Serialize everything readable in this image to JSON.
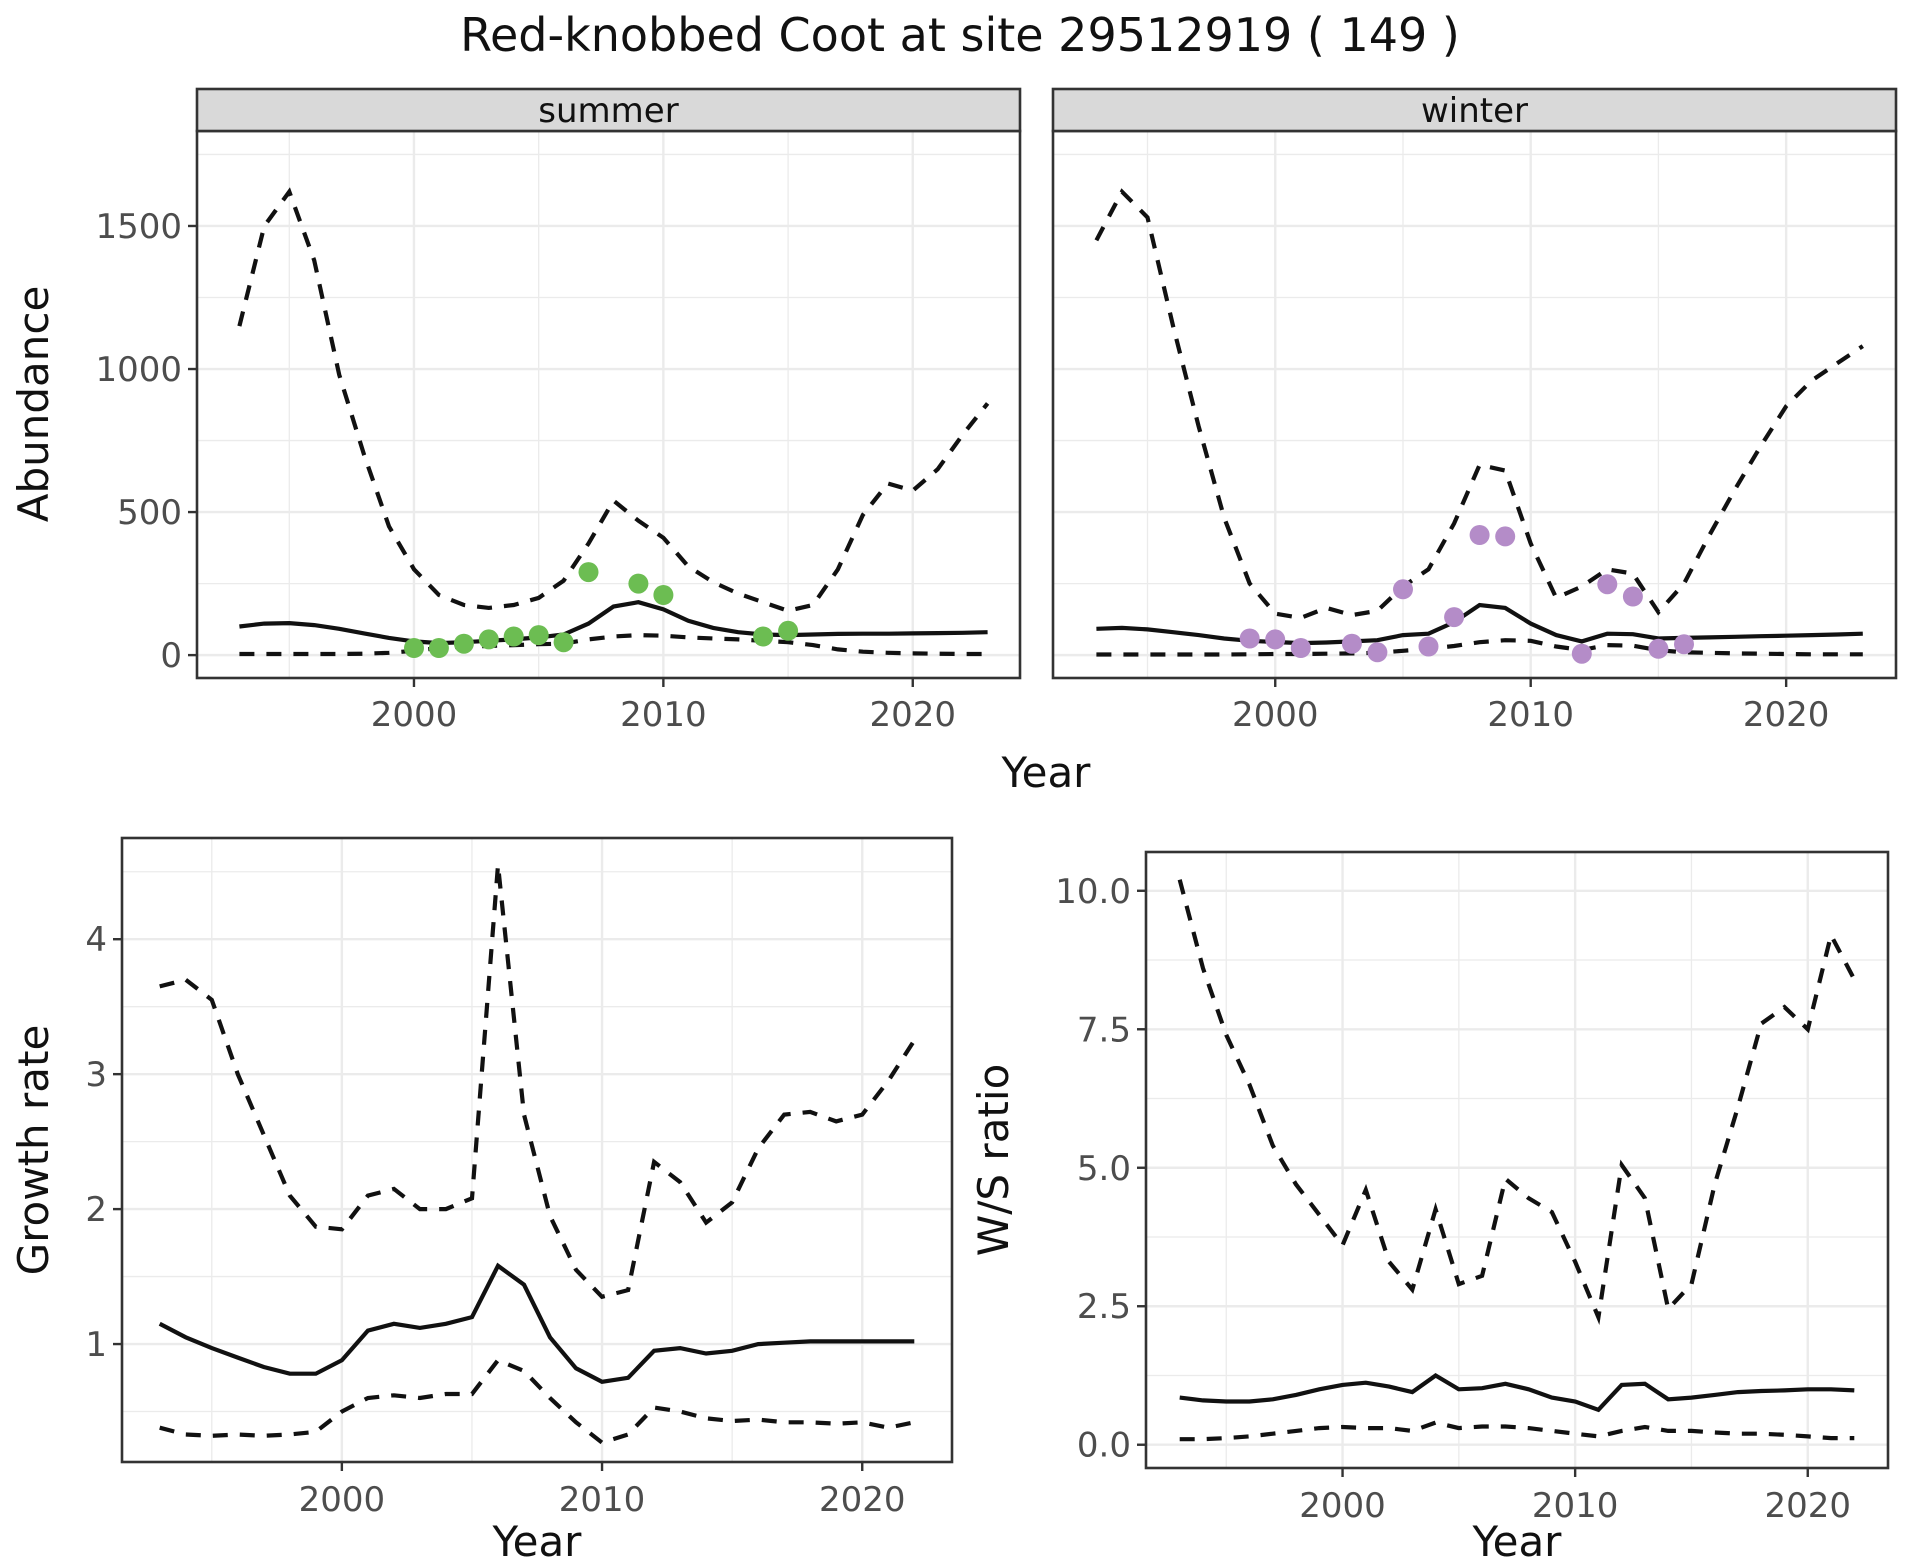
{
  "title": "Red-knobbed Coot at site 29512919 ( 149 )",
  "colors": {
    "summer_points": "#6cbd52",
    "winter_points": "#b48cc8",
    "line": "#111111",
    "gridline": "#ebebeb",
    "panel_border": "#333333",
    "strip_bg": "#d9d9d9",
    "strip_text": "#111111",
    "tick_label": "#4d4d4d",
    "axis_title": "#111111",
    "panel_bg": "#ffffff"
  },
  "chart_data": [
    {
      "id": "abundance-summer",
      "type": "line",
      "facet": "summer",
      "xlabel": "Year",
      "ylabel": "Abundance",
      "xlim": [
        1991.3,
        2024.3
      ],
      "ylim": [
        -80,
        1832
      ],
      "x_ticks": [
        2000,
        2010,
        2020
      ],
      "x_tick_labels": [
        "2000",
        "2010",
        "2020"
      ],
      "x_minor": [
        1995,
        2005,
        2015
      ],
      "y_ticks": [
        0,
        500,
        1000,
        1500
      ],
      "y_tick_labels": [
        "0",
        "500",
        "1000",
        "1500"
      ],
      "y_minor": [
        250,
        750,
        1250,
        1750
      ],
      "x": [
        1993,
        1994,
        1995,
        1996,
        1997,
        1998,
        1999,
        2000,
        2001,
        2002,
        2003,
        2004,
        2005,
        2006,
        2007,
        2008,
        2009,
        2010,
        2011,
        2012,
        2013,
        2014,
        2015,
        2016,
        2017,
        2018,
        2019,
        2020,
        2021,
        2022,
        2023
      ],
      "series": [
        {
          "name": "upper_ci",
          "style": "dashed",
          "values": [
            1150,
            1500,
            1620,
            1380,
            980,
            700,
            450,
            300,
            210,
            175,
            165,
            175,
            200,
            260,
            390,
            540,
            470,
            410,
            310,
            255,
            215,
            185,
            155,
            175,
            300,
            490,
            600,
            575,
            650,
            770,
            880
          ]
        },
        {
          "name": "mean",
          "style": "solid",
          "values": [
            100,
            110,
            112,
            105,
            92,
            76,
            60,
            48,
            42,
            45,
            50,
            55,
            62,
            72,
            110,
            170,
            185,
            160,
            120,
            95,
            80,
            72,
            70,
            72,
            74,
            75,
            75,
            76,
            77,
            78,
            80
          ]
        },
        {
          "name": "lower_ci",
          "style": "dashed",
          "values": [
            4,
            4,
            4,
            4,
            4,
            5,
            8,
            15,
            25,
            30,
            32,
            35,
            38,
            40,
            55,
            65,
            70,
            68,
            62,
            58,
            55,
            50,
            45,
            35,
            20,
            12,
            8,
            6,
            5,
            4,
            4
          ]
        }
      ],
      "points": {
        "name": "summer_observations",
        "color_key": "summer_points",
        "data": [
          [
            2000,
            25
          ],
          [
            2001,
            25
          ],
          [
            2002,
            40
          ],
          [
            2003,
            55
          ],
          [
            2004,
            65
          ],
          [
            2005,
            70
          ],
          [
            2006,
            45
          ],
          [
            2007,
            290
          ],
          [
            2009,
            250
          ],
          [
            2010,
            210
          ],
          [
            2014,
            65
          ],
          [
            2015,
            85
          ]
        ]
      }
    },
    {
      "id": "abundance-winter",
      "type": "line",
      "facet": "winter",
      "xlabel": "Year",
      "ylabel": "Abundance",
      "xlim": [
        1991.3,
        2024.3
      ],
      "ylim": [
        -80,
        1832
      ],
      "x_ticks": [
        2000,
        2010,
        2020
      ],
      "x_tick_labels": [
        "2000",
        "2010",
        "2020"
      ],
      "x_minor": [
        1995,
        2005,
        2015
      ],
      "y_ticks": [
        0,
        500,
        1000,
        1500
      ],
      "y_tick_labels": [
        "0",
        "500",
        "1000",
        "1500"
      ],
      "y_minor": [
        250,
        750,
        1250,
        1750
      ],
      "x": [
        1993,
        1994,
        1995,
        1996,
        1997,
        1998,
        1999,
        2000,
        2001,
        2002,
        2003,
        2004,
        2005,
        2006,
        2007,
        2008,
        2009,
        2010,
        2011,
        2012,
        2013,
        2014,
        2015,
        2016,
        2017,
        2018,
        2019,
        2020,
        2021,
        2022,
        2023
      ],
      "series": [
        {
          "name": "upper_ci",
          "style": "dashed",
          "values": [
            1450,
            1620,
            1530,
            1150,
            800,
            480,
            250,
            145,
            130,
            165,
            140,
            155,
            240,
            300,
            460,
            665,
            645,
            390,
            200,
            240,
            300,
            285,
            150,
            250,
            420,
            580,
            730,
            870,
            960,
            1020,
            1080
          ]
        },
        {
          "name": "mean",
          "style": "solid",
          "values": [
            92,
            95,
            90,
            80,
            70,
            58,
            50,
            46,
            42,
            44,
            48,
            52,
            70,
            75,
            115,
            175,
            165,
            110,
            70,
            48,
            75,
            73,
            58,
            60,
            62,
            64,
            66,
            68,
            70,
            72,
            75
          ]
        },
        {
          "name": "lower_ci",
          "style": "dashed",
          "values": [
            2,
            2,
            2,
            2,
            2,
            2,
            3,
            4,
            4,
            5,
            6,
            8,
            15,
            22,
            32,
            45,
            52,
            50,
            30,
            18,
            35,
            33,
            17,
            10,
            8,
            6,
            5,
            4,
            3,
            3,
            3
          ]
        }
      ],
      "points": {
        "name": "winter_observations",
        "color_key": "winter_points",
        "data": [
          [
            1999,
            58
          ],
          [
            2000,
            55
          ],
          [
            2001,
            25
          ],
          [
            2003,
            40
          ],
          [
            2004,
            10
          ],
          [
            2005,
            230
          ],
          [
            2006,
            30
          ],
          [
            2007,
            133
          ],
          [
            2008,
            420
          ],
          [
            2009,
            415
          ],
          [
            2012,
            5
          ],
          [
            2013,
            248
          ],
          [
            2014,
            205
          ],
          [
            2015,
            22
          ],
          [
            2016,
            38
          ]
        ]
      }
    },
    {
      "id": "growth-rate",
      "type": "line",
      "facet": null,
      "xlabel": "Year",
      "ylabel": "Growth rate",
      "xlim": [
        1991.55,
        2023.45
      ],
      "ylim": [
        0.126,
        4.75
      ],
      "x_ticks": [
        2000,
        2010,
        2020
      ],
      "x_tick_labels": [
        "2000",
        "2010",
        "2020"
      ],
      "x_minor": [
        1995,
        2005,
        2015
      ],
      "y_ticks": [
        1,
        2,
        3,
        4
      ],
      "y_tick_labels": [
        "1",
        "2",
        "3",
        "4"
      ],
      "y_minor": [
        0.5,
        1.5,
        2.5,
        3.5,
        4.5
      ],
      "x": [
        1993,
        1994,
        1995,
        1996,
        1997,
        1998,
        1999,
        2000,
        2001,
        2002,
        2003,
        2004,
        2005,
        2006,
        2007,
        2008,
        2009,
        2010,
        2011,
        2012,
        2013,
        2014,
        2015,
        2016,
        2017,
        2018,
        2019,
        2020,
        2021,
        2022
      ],
      "series": [
        {
          "name": "upper_ci",
          "style": "dashed",
          "values": [
            3.65,
            3.7,
            3.55,
            3.0,
            2.55,
            2.1,
            1.87,
            1.85,
            2.1,
            2.15,
            2.0,
            2.0,
            2.08,
            4.55,
            2.7,
            1.95,
            1.55,
            1.35,
            1.4,
            2.35,
            2.2,
            1.9,
            2.05,
            2.45,
            2.7,
            2.72,
            2.65,
            2.7,
            2.95,
            3.25
          ]
        },
        {
          "name": "mean",
          "style": "solid",
          "values": [
            1.15,
            1.05,
            0.97,
            0.9,
            0.83,
            0.78,
            0.78,
            0.88,
            1.1,
            1.15,
            1.12,
            1.15,
            1.2,
            1.58,
            1.44,
            1.05,
            0.82,
            0.72,
            0.75,
            0.95,
            0.97,
            0.93,
            0.95,
            1.0,
            1.01,
            1.02,
            1.02,
            1.02,
            1.02,
            1.02
          ]
        },
        {
          "name": "lower_ci",
          "style": "dashed",
          "values": [
            0.38,
            0.33,
            0.32,
            0.33,
            0.32,
            0.33,
            0.35,
            0.5,
            0.6,
            0.62,
            0.6,
            0.63,
            0.63,
            0.88,
            0.8,
            0.6,
            0.42,
            0.27,
            0.33,
            0.53,
            0.5,
            0.45,
            0.43,
            0.44,
            0.42,
            0.42,
            0.41,
            0.42,
            0.38,
            0.42
          ]
        }
      ],
      "points": null
    },
    {
      "id": "ws-ratio",
      "type": "line",
      "facet": null,
      "xlabel": "Year",
      "ylabel": "W/S ratio",
      "xlim": [
        1991.55,
        2023.45
      ],
      "ylim": [
        -0.42,
        10.7
      ],
      "x_ticks": [
        2000,
        2010,
        2020
      ],
      "x_tick_labels": [
        "2000",
        "2010",
        "2020"
      ],
      "x_minor": [
        1995,
        2005,
        2015
      ],
      "y_ticks": [
        0,
        2.5,
        5,
        7.5,
        10
      ],
      "y_tick_labels": [
        "0.0",
        "2.5",
        "5.0",
        "7.5",
        "10.0"
      ],
      "y_minor": [
        1.25,
        3.75,
        6.25,
        8.75
      ],
      "x": [
        1993,
        1994,
        1995,
        1996,
        1997,
        1998,
        1999,
        2000,
        2001,
        2002,
        2003,
        2004,
        2005,
        2006,
        2007,
        2008,
        2009,
        2010,
        2011,
        2012,
        2013,
        2014,
        2015,
        2016,
        2017,
        2018,
        2019,
        2020,
        2021,
        2022
      ],
      "series": [
        {
          "name": "upper_ci",
          "style": "dashed",
          "values": [
            10.2,
            8.6,
            7.4,
            6.5,
            5.4,
            4.7,
            4.15,
            3.6,
            4.6,
            3.3,
            2.8,
            4.25,
            2.9,
            3.05,
            4.8,
            4.45,
            4.2,
            3.3,
            2.3,
            5.05,
            4.45,
            2.45,
            2.9,
            4.7,
            6.1,
            7.6,
            7.9,
            7.5,
            9.2,
            8.4
          ]
        },
        {
          "name": "mean",
          "style": "solid",
          "values": [
            0.85,
            0.8,
            0.78,
            0.78,
            0.82,
            0.9,
            1.0,
            1.08,
            1.12,
            1.05,
            0.95,
            1.25,
            1.0,
            1.02,
            1.1,
            1.0,
            0.85,
            0.78,
            0.63,
            1.08,
            1.1,
            0.82,
            0.85,
            0.9,
            0.95,
            0.97,
            0.98,
            1.0,
            1.0,
            0.98
          ]
        },
        {
          "name": "lower_ci",
          "style": "dashed",
          "values": [
            0.1,
            0.1,
            0.12,
            0.15,
            0.2,
            0.25,
            0.3,
            0.32,
            0.3,
            0.3,
            0.25,
            0.4,
            0.3,
            0.33,
            0.33,
            0.3,
            0.25,
            0.2,
            0.15,
            0.25,
            0.32,
            0.25,
            0.25,
            0.22,
            0.2,
            0.2,
            0.18,
            0.15,
            0.12,
            0.12
          ]
        }
      ],
      "points": null
    }
  ],
  "shared_axis_labels": {
    "top_row_xlabel": "Year",
    "top_row_ylabel": "Abundance"
  }
}
